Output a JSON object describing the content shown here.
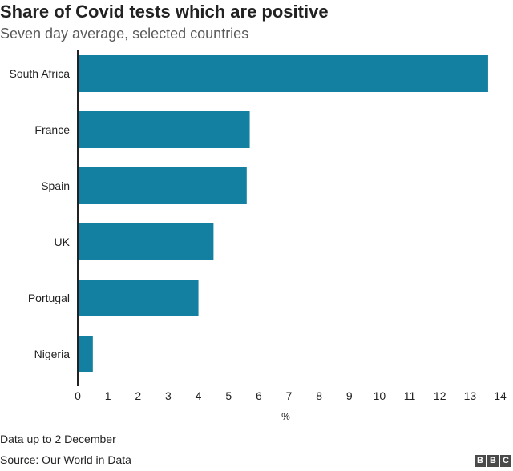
{
  "header": {
    "title": "Share of Covid tests which are positive",
    "subtitle": "Seven day average, selected countries"
  },
  "footer": {
    "note": "Data up to 2 December",
    "source": "Source: Our World in Data",
    "logo_letters": [
      "B",
      "B",
      "C"
    ]
  },
  "colors": {
    "bar": "#1380a1",
    "axis": "#222222",
    "text": "#222222"
  },
  "chart_data": {
    "type": "bar",
    "orientation": "horizontal",
    "title": "Share of Covid tests which are positive",
    "subtitle": "Seven day average, selected countries",
    "categories": [
      "South Africa",
      "France",
      "Spain",
      "UK",
      "Portugal",
      "Nigeria"
    ],
    "values": [
      13.6,
      5.7,
      5.6,
      4.5,
      4.0,
      0.5
    ],
    "xlabel": "%",
    "ylabel": "",
    "xlim": [
      0,
      14
    ],
    "xticks": [
      0,
      1,
      2,
      3,
      4,
      5,
      6,
      7,
      8,
      9,
      10,
      11,
      12,
      13,
      14
    ],
    "grid": false,
    "legend": "none"
  }
}
